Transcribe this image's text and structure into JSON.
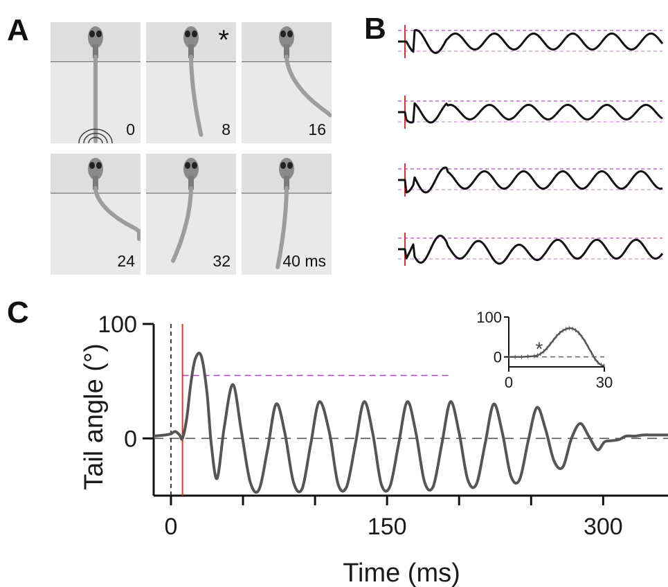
{
  "figure": {
    "panels": {
      "a": "A",
      "b": "B",
      "c": "C"
    },
    "panel_a": {
      "frames": [
        {
          "label": "0",
          "tail_bend": 0,
          "rings": true,
          "mark": ""
        },
        {
          "label": "8",
          "tail_bend": 0.55,
          "rings": false,
          "mark": "*"
        },
        {
          "label": "16",
          "tail_bend": 1.8,
          "rings": false,
          "mark": ""
        },
        {
          "label": "24",
          "tail_bend": 2.3,
          "rings": false,
          "mark": ""
        },
        {
          "label": "32",
          "tail_bend": -0.9,
          "rings": false,
          "mark": ""
        },
        {
          "label": "40 ms",
          "tail_bend": -0.5,
          "rings": false,
          "mark": ""
        }
      ]
    },
    "panel_b": {
      "traces": [
        {
          "pulse_ms": 5,
          "peak_amp": 1.1
        },
        {
          "pulse_ms": 5,
          "peak_amp": 1.0
        },
        {
          "pulse_ms": 5,
          "peak_amp": 1.2
        },
        {
          "pulse_ms": 5,
          "peak_amp": 1.3
        }
      ],
      "colors": {
        "trace": "#111111",
        "threshold": "#b04cc4",
        "stimulus": "#e03030"
      }
    }
  },
  "chart_data": [
    {
      "type": "line",
      "xlabel": "Time (ms)",
      "ylabel": "Tail angle (°)",
      "xticks": [
        0,
        150,
        300
      ],
      "yticks": [
        0,
        100
      ],
      "xlim": [
        -12,
        345
      ],
      "ylim": [
        -50,
        100
      ],
      "threshold": 55,
      "stimulus_ms": 8,
      "onset_ms": 0,
      "series": [
        {
          "x": [
            -12,
            -4,
            0,
            3,
            6,
            8,
            11,
            14,
            17,
            21,
            25,
            28,
            32,
            37,
            43,
            49,
            55,
            61,
            67,
            73,
            79,
            85,
            91,
            97,
            103,
            110,
            116,
            122,
            128,
            134,
            140,
            146,
            152,
            158,
            164,
            170,
            176,
            182,
            188,
            194,
            200,
            206,
            212,
            218,
            224,
            230,
            236,
            242,
            248,
            254,
            260,
            266,
            272,
            278,
            284,
            290,
            296,
            301,
            306,
            311,
            316,
            322,
            328,
            335,
            345
          ],
          "y": [
            2,
            3,
            4,
            6,
            3,
            0,
            18,
            50,
            70,
            72,
            40,
            -5,
            -35,
            10,
            47,
            5,
            -38,
            -45,
            -10,
            30,
            5,
            -38,
            -44,
            -5,
            32,
            5,
            -40,
            -42,
            -5,
            32,
            5,
            -40,
            -42,
            -5,
            32,
            5,
            -38,
            -42,
            -5,
            32,
            5,
            -36,
            -40,
            -5,
            30,
            5,
            -33,
            -36,
            -2,
            27,
            8,
            -20,
            -25,
            0,
            13,
            2,
            -10,
            -3,
            -2,
            -1,
            2,
            2,
            3,
            3,
            3
          ]
        }
      ],
      "colors": {
        "line": "#555555",
        "threshold": "#b04cc4",
        "stimulus": "#e03030",
        "zero": "#555555"
      }
    },
    {
      "type": "line",
      "xticks": [
        0,
        30
      ],
      "yticks": [
        0,
        100
      ],
      "xlim": [
        0,
        30
      ],
      "ylim": [
        -25,
        100
      ],
      "annotation": "*",
      "annotation_ms": 10,
      "series": [
        {
          "x": [
            0,
            2,
            4,
            6,
            8,
            9,
            10,
            11,
            12,
            13,
            14,
            15,
            16,
            17,
            18,
            19,
            20,
            21,
            22,
            23,
            24,
            25,
            26,
            27,
            28,
            29,
            30
          ],
          "y": [
            0,
            0,
            0,
            1,
            2,
            4,
            8,
            14,
            22,
            32,
            42,
            52,
            60,
            66,
            70,
            72,
            71,
            67,
            60,
            50,
            38,
            24,
            10,
            -4,
            -14,
            -20,
            -22
          ]
        }
      ]
    }
  ]
}
